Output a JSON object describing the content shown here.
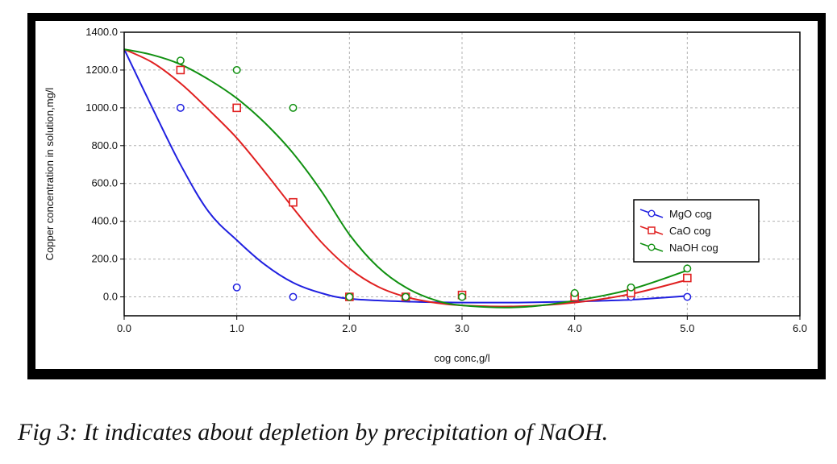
{
  "caption": "Fig  3: It indicates about depletion by precipitation of NaOH.",
  "chart_data": {
    "type": "scatter",
    "title": "",
    "xlabel": "cog conc,g/l",
    "ylabel": "Copper concentration in solution,mg/l",
    "xlim": [
      0,
      6
    ],
    "ylim": [
      -100,
      1400
    ],
    "x_ticks": [
      "0.0",
      "1.0",
      "2.0",
      "3.0",
      "4.0",
      "5.0",
      "6.0"
    ],
    "y_ticks": [
      "1400.0",
      "1200.0",
      "1000.0",
      "800.0",
      "600.0",
      "400.0",
      "200.0",
      "0.0"
    ],
    "grid": true,
    "legend_position": "right",
    "series": [
      {
        "name": "MgO cog",
        "color": "#2020e0",
        "marker": "circle",
        "x": [
          0.5,
          1.0,
          1.5,
          2.0,
          2.5,
          3.0,
          4.0,
          4.5,
          5.0
        ],
        "y": [
          1000,
          50,
          0,
          0,
          0,
          0,
          0,
          0,
          0
        ],
        "fit_curve": [
          [
            0,
            1310
          ],
          [
            0.25,
            1000
          ],
          [
            0.5,
            700
          ],
          [
            0.75,
            450
          ],
          [
            1.0,
            300
          ],
          [
            1.25,
            170
          ],
          [
            1.5,
            75
          ],
          [
            1.75,
            20
          ],
          [
            2.0,
            -10
          ],
          [
            2.5,
            -25
          ],
          [
            3.0,
            -30
          ],
          [
            3.5,
            -30
          ],
          [
            4.0,
            -25
          ],
          [
            4.5,
            -15
          ],
          [
            5.0,
            5
          ]
        ]
      },
      {
        "name": "CaO cog",
        "color": "#e02020",
        "marker": "square",
        "x": [
          0.5,
          1.0,
          1.5,
          2.0,
          2.5,
          3.0,
          4.0,
          4.5,
          5.0
        ],
        "y": [
          1200,
          1000,
          500,
          0,
          0,
          10,
          0,
          20,
          100
        ],
        "fit_curve": [
          [
            0,
            1310
          ],
          [
            0.25,
            1240
          ],
          [
            0.5,
            1130
          ],
          [
            0.75,
            990
          ],
          [
            1.0,
            840
          ],
          [
            1.25,
            660
          ],
          [
            1.5,
            470
          ],
          [
            1.75,
            290
          ],
          [
            2.0,
            150
          ],
          [
            2.25,
            55
          ],
          [
            2.5,
            0
          ],
          [
            2.75,
            -30
          ],
          [
            3.0,
            -45
          ],
          [
            3.5,
            -50
          ],
          [
            4.0,
            -30
          ],
          [
            4.5,
            15
          ],
          [
            5.0,
            90
          ]
        ]
      },
      {
        "name": "NaOH cog",
        "color": "#109010",
        "marker": "circle",
        "x": [
          0.5,
          1.0,
          1.5,
          2.0,
          2.5,
          3.0,
          4.0,
          4.5,
          5.0
        ],
        "y": [
          1250,
          1200,
          1000,
          0,
          0,
          0,
          20,
          50,
          150
        ],
        "fit_curve": [
          [
            0,
            1310
          ],
          [
            0.25,
            1280
          ],
          [
            0.5,
            1230
          ],
          [
            0.75,
            1150
          ],
          [
            1.0,
            1050
          ],
          [
            1.25,
            920
          ],
          [
            1.5,
            760
          ],
          [
            1.75,
            560
          ],
          [
            2.0,
            330
          ],
          [
            2.25,
            160
          ],
          [
            2.5,
            50
          ],
          [
            2.75,
            -15
          ],
          [
            3.0,
            -45
          ],
          [
            3.5,
            -55
          ],
          [
            4.0,
            -20
          ],
          [
            4.5,
            40
          ],
          [
            5.0,
            140
          ]
        ]
      }
    ]
  }
}
